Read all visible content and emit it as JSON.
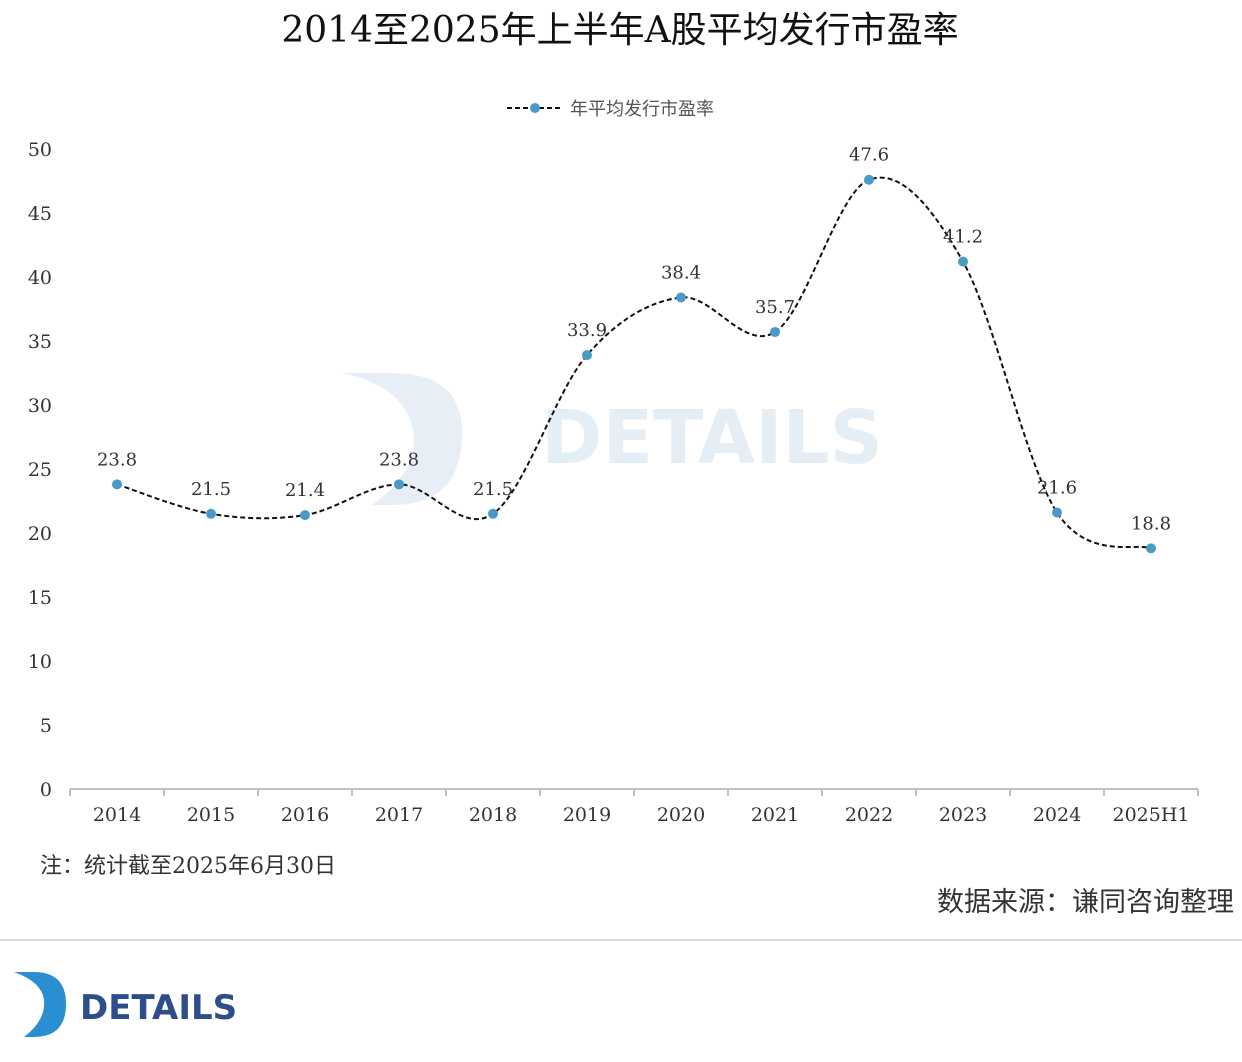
{
  "chart_data": {
    "type": "line",
    "title": "2014至2025年上半年A股平均发行市盈率",
    "categories": [
      "2014",
      "2015",
      "2016",
      "2017",
      "2018",
      "2019",
      "2020",
      "2021",
      "2022",
      "2023",
      "2024",
      "2025H1"
    ],
    "series": [
      {
        "name": "年平均发行市盈率",
        "values": [
          23.8,
          21.5,
          21.4,
          23.8,
          21.5,
          33.9,
          38.4,
          35.7,
          47.6,
          41.2,
          21.6,
          18.8
        ],
        "labels": [
          "23.8",
          "21.5",
          "21.4",
          "23.8",
          "21.5",
          "33.9",
          "38.4",
          "35.7",
          "47.6",
          "41.2",
          "21.6",
          "18.8"
        ]
      }
    ],
    "ylim": [
      0,
      50
    ],
    "yticks": [
      "0",
      "5",
      "10",
      "15",
      "20",
      "25",
      "30",
      "35",
      "40",
      "45",
      "50"
    ],
    "xlabel": "",
    "ylabel": "",
    "grid": false,
    "legend_position": "top-center",
    "line_style": "dashed smooth",
    "colors": {
      "line": "#111111",
      "marker": "#4a9ac8",
      "axis": "#bfbfbf"
    }
  },
  "note": "注：统计截至2025年6月30日",
  "source": "数据来源：谦同咨询整理",
  "watermark": "DETAILS",
  "logo": {
    "text": "DETAILS",
    "icon": "details-logo-icon",
    "color": "#2d4e8a"
  }
}
